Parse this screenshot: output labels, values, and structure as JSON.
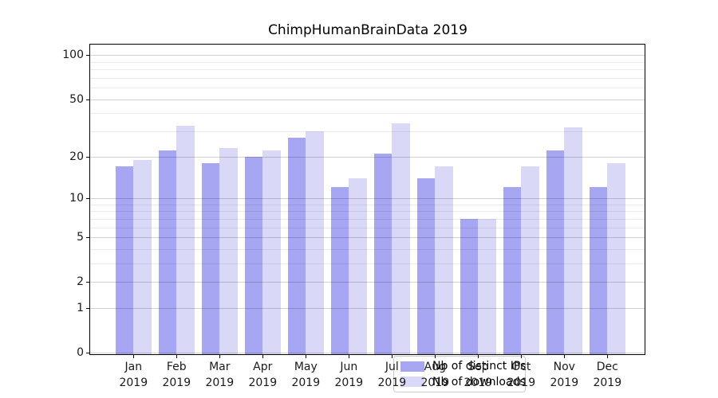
{
  "chart_data": {
    "type": "bar",
    "title": "ChimpHumanBrainData 2019",
    "categories": [
      "Jan",
      "Feb",
      "Mar",
      "Apr",
      "May",
      "Jun",
      "Jul",
      "Aug",
      "Sep",
      "Oct",
      "Nov",
      "Dec"
    ],
    "year_label": "2019",
    "series": [
      {
        "name": "Nb of distinct IPs",
        "color": "#a6a6f2",
        "values": [
          17,
          22,
          18,
          20,
          27,
          12,
          21,
          14,
          7,
          12,
          22,
          12
        ]
      },
      {
        "name": "Nb of downloads",
        "color": "#d9d9f7",
        "values": [
          19,
          33,
          23,
          22,
          30,
          14,
          34,
          17,
          7,
          17,
          32,
          18
        ]
      }
    ],
    "y_scale": "log1p",
    "y_ticks": [
      0,
      1,
      2,
      5,
      10,
      20,
      50,
      100
    ],
    "y_minor_ticks": [
      3,
      4,
      6,
      7,
      8,
      9,
      30,
      40,
      60,
      70,
      80,
      90
    ],
    "ylim": [
      -0.03,
      118
    ],
    "grid": true,
    "grid_on_top": true,
    "legend_position": "lower center",
    "background_color": "#ffffff",
    "spine_color": "#000000"
  }
}
